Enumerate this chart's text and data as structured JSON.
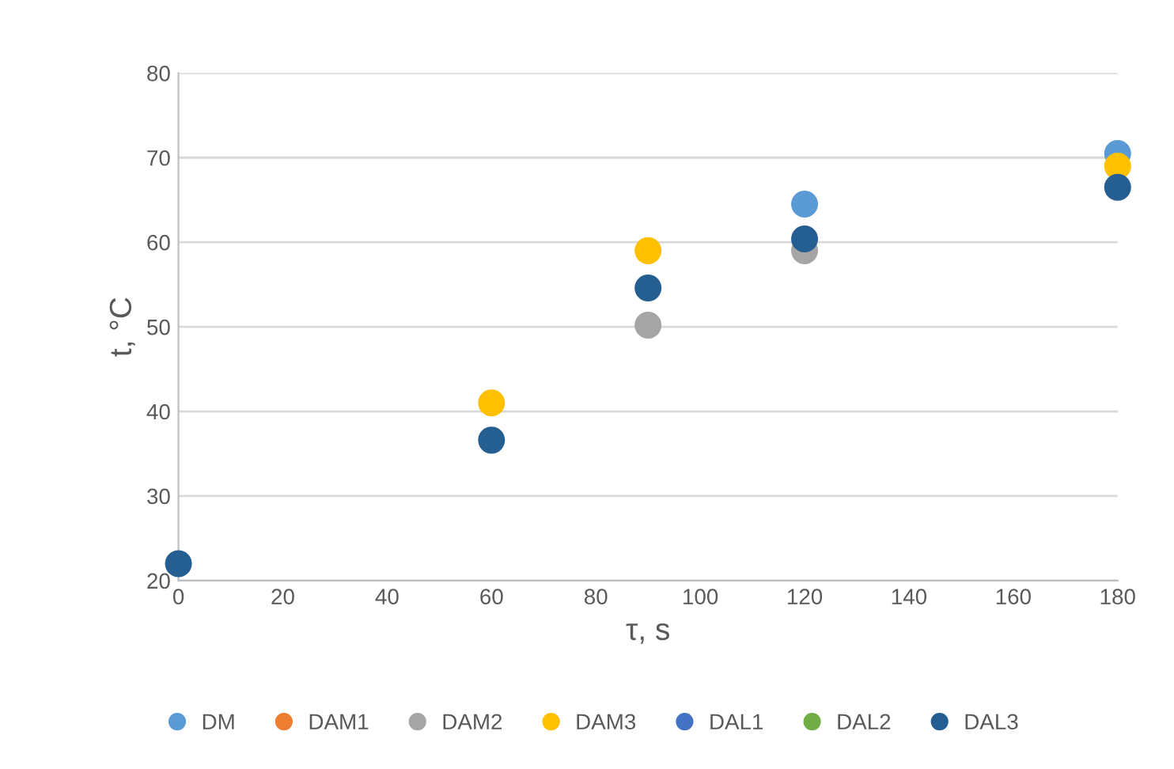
{
  "chart_data": {
    "type": "scatter",
    "xlabel": "τ, s",
    "ylabel": "t, °C",
    "x": [
      0,
      60,
      90,
      120,
      180
    ],
    "series": [
      {
        "name": "DM",
        "color": "#5b9bd5",
        "values": [
          null,
          null,
          null,
          64.5,
          70.5
        ]
      },
      {
        "name": "DAM1",
        "color": "#ed7d31",
        "values": [
          null,
          null,
          null,
          null,
          null
        ]
      },
      {
        "name": "DAM2",
        "color": "#a5a5a5",
        "values": [
          null,
          null,
          50.2,
          59.0,
          null
        ]
      },
      {
        "name": "DAM3",
        "color": "#ffc000",
        "values": [
          null,
          41.0,
          59.0,
          null,
          69.0
        ]
      },
      {
        "name": "DAL1",
        "color": "#4472c4",
        "values": [
          null,
          null,
          null,
          null,
          null
        ]
      },
      {
        "name": "DAL2",
        "color": "#70ad47",
        "values": [
          null,
          null,
          null,
          null,
          null
        ]
      },
      {
        "name": "DAL3",
        "color": "#255e91",
        "values": [
          22.0,
          36.6,
          54.6,
          60.4,
          66.5
        ]
      }
    ],
    "xlim": [
      0,
      180
    ],
    "xticks": [
      0,
      20,
      40,
      60,
      80,
      100,
      120,
      140,
      160,
      180
    ],
    "ylim": [
      20,
      80
    ],
    "yticks": [
      20,
      30,
      40,
      50,
      60,
      70,
      80
    ],
    "grid": "y",
    "legend": "bottom",
    "marker": "circle"
  }
}
